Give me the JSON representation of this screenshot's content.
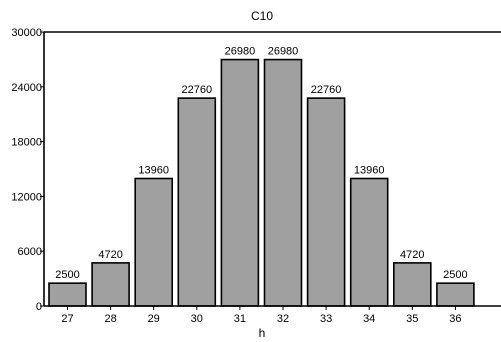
{
  "chart_data": {
    "type": "bar",
    "title": "C10",
    "xlabel": "h",
    "ylabel": "",
    "categories": [
      "27",
      "28",
      "29",
      "30",
      "31",
      "32",
      "33",
      "34",
      "35",
      "36"
    ],
    "values": [
      2500,
      4720,
      13960,
      22760,
      26980,
      26980,
      22760,
      13960,
      4720,
      2500
    ],
    "data_labels": [
      "2500",
      "4720",
      "13960",
      "22760",
      "26980",
      "26980",
      "22760",
      "13960",
      "4720",
      "2500"
    ],
    "ylim": [
      0,
      30000
    ],
    "yticks": [
      0,
      6000,
      12000,
      18000,
      24000,
      30000
    ],
    "ytick_labels": [
      "0",
      "6000",
      "12000",
      "18000",
      "24000",
      "30000"
    ],
    "grid": false,
    "legend": "none",
    "colors": {
      "bar_fill": "#a0a0a0",
      "bar_stroke": "#000000"
    }
  }
}
